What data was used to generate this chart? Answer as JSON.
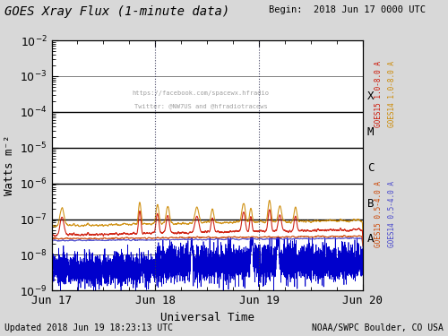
{
  "title": "GOES Xray Flux (1-minute data)",
  "begin_text": "Begin:  2018 Jun 17 0000 UTC",
  "xlabel": "Universal Time",
  "ylabel": "Watts m⁻²",
  "updated_text": "Updated 2018 Jun 19 18:23:13 UTC",
  "credit_text": "NOAA/SWPC Boulder, CO USA",
  "watermark_line1": "https://facebook.com/spacewx.hfradio",
  "watermark_line2": "Twitter: @NW7US and @hfradiotracews",
  "bg_color": "#d8d8d8",
  "plot_bg": "#ffffff",
  "goes15_1_8_color": "#cc1100",
  "goes14_1_8_color": "#cc8800",
  "goes15_0_5_color": "#cc4400",
  "goes14_0_5_color": "#4444cc",
  "goes_blue_color": "#0000cc",
  "legend_goes15_18": "GOES15 1.0-8.0 A",
  "legend_goes14_18": "GOES14 1.0-8.0 A",
  "legend_goes15_05": "GOES15 0.5-4.0 A",
  "legend_goes14_05": "GOES14 0.5-4.0 A",
  "font_size": 9,
  "title_font_size": 10
}
